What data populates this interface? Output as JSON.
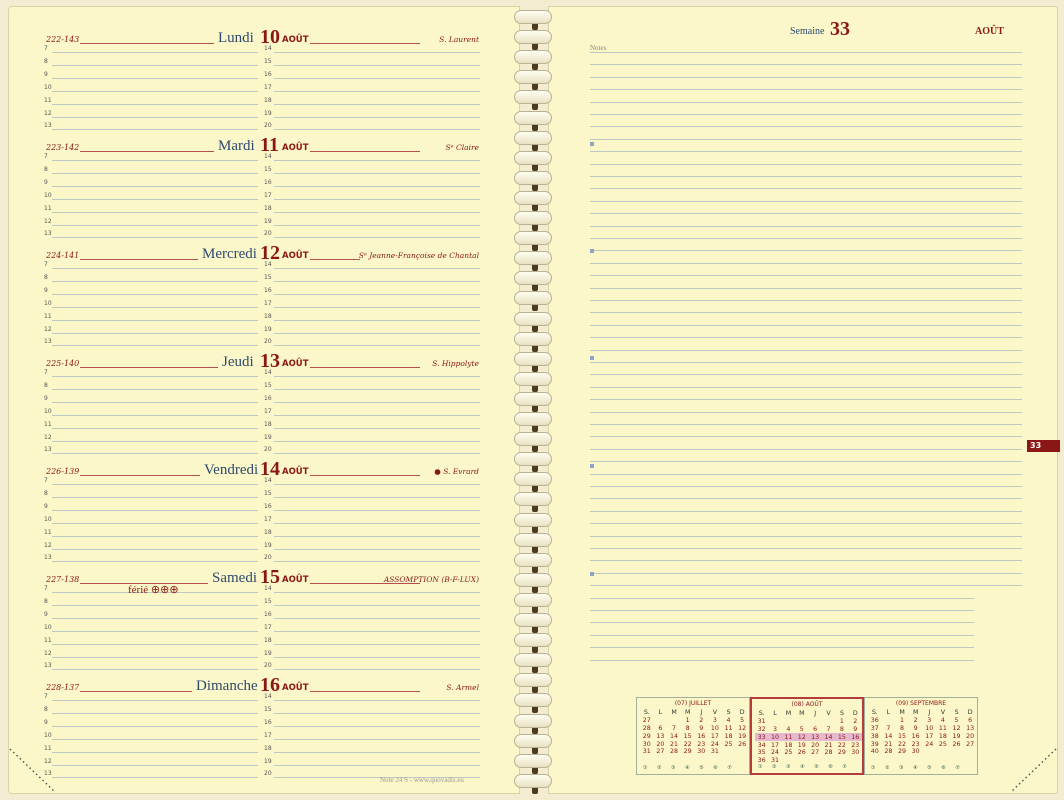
{
  "left_page": {
    "footer": "Note 24 S - www.quovadis.eu",
    "days": [
      {
        "code": "222-143",
        "name": "Lundi",
        "num": "10",
        "month": "AOÛT",
        "saint": "S. Laurent",
        "note": ""
      },
      {
        "code": "223-142",
        "name": "Mardi",
        "num": "11",
        "month": "AOÛT",
        "saint": "Sᵉ Claire",
        "note": ""
      },
      {
        "code": "224-141",
        "name": "Mercredi",
        "num": "12",
        "month": "AOÛT",
        "saint": "Sᵉ Jeanne-Françoise de Chantal",
        "note": ""
      },
      {
        "code": "225-140",
        "name": "Jeudi",
        "num": "13",
        "month": "AOÛT",
        "saint": "S. Hippolyte",
        "note": ""
      },
      {
        "code": "226-139",
        "name": "Vendredi",
        "num": "14",
        "month": "AOÛT",
        "saint": "● S. Evrard",
        "note": ""
      },
      {
        "code": "227-138",
        "name": "Samedi",
        "num": "15",
        "month": "AOÛT",
        "saint": "ASSOMPTION (B-F-LUX)",
        "note": "férié ⊕⊕⊕"
      },
      {
        "code": "228-137",
        "name": "Dimanche",
        "num": "16",
        "month": "AOÛT",
        "saint": "S. Armel",
        "note": ""
      }
    ],
    "hours_left": [
      "7",
      "8",
      "9",
      "10",
      "11",
      "12",
      "13"
    ],
    "hours_right": [
      "14",
      "15",
      "16",
      "17",
      "18",
      "19",
      "20"
    ]
  },
  "right_page": {
    "week_label": "Semaine",
    "week_number": "33",
    "month": "AOÛT",
    "notes_label": "Notes",
    "tab": "33"
  },
  "mini_calendars": [
    {
      "title": "(07) JUILLET",
      "selected": false,
      "header": [
        "S.",
        "L",
        "M",
        "M",
        "J",
        "V",
        "S",
        "D"
      ],
      "rows": [
        [
          "27",
          "",
          "",
          "1",
          "2",
          "3",
          "4",
          "5"
        ],
        [
          "28",
          "6",
          "7",
          "8",
          "9",
          "10",
          "11",
          "12"
        ],
        [
          "29",
          "13",
          "14",
          "15",
          "16",
          "17",
          "18",
          "19"
        ],
        [
          "30",
          "20",
          "21",
          "22",
          "23",
          "24",
          "25",
          "26"
        ],
        [
          "31",
          "27",
          "28",
          "29",
          "30",
          "31",
          "",
          ""
        ]
      ],
      "highlight_row": -1,
      "footer": "① ② ③ ④ ⑤ ⑥ ⑦"
    },
    {
      "title": "(08) AOÛT",
      "selected": true,
      "header": [
        "S.",
        "L",
        "M",
        "M",
        "J",
        "V",
        "S",
        "D"
      ],
      "rows": [
        [
          "31",
          "",
          "",
          "",
          "",
          "",
          "1",
          "2"
        ],
        [
          "32",
          "3",
          "4",
          "5",
          "6",
          "7",
          "8",
          "9"
        ],
        [
          "33",
          "10",
          "11",
          "12",
          "13",
          "14",
          "15",
          "16"
        ],
        [
          "34",
          "17",
          "18",
          "19",
          "20",
          "21",
          "22",
          "23"
        ],
        [
          "35",
          "24",
          "25",
          "26",
          "27",
          "28",
          "29",
          "30"
        ],
        [
          "36",
          "31",
          "",
          "",
          "",
          "",
          "",
          ""
        ]
      ],
      "highlight_row": 2,
      "footer": "① ② ③ ④ ⑤ ⑥ ⑦"
    },
    {
      "title": "(09) SEPTEMBRE",
      "selected": false,
      "header": [
        "S.",
        "L",
        "M",
        "M",
        "J",
        "V",
        "S",
        "D"
      ],
      "rows": [
        [
          "36",
          "",
          "1",
          "2",
          "3",
          "4",
          "5",
          "6"
        ],
        [
          "37",
          "7",
          "8",
          "9",
          "10",
          "11",
          "12",
          "13"
        ],
        [
          "38",
          "14",
          "15",
          "16",
          "17",
          "18",
          "19",
          "20"
        ],
        [
          "39",
          "21",
          "22",
          "23",
          "24",
          "25",
          "26",
          "27"
        ],
        [
          "40",
          "28",
          "29",
          "30",
          "",
          "",
          "",
          ""
        ]
      ],
      "highlight_row": -1,
      "footer": "① ② ③ ④ ⑤ ⑥ ⑦"
    }
  ]
}
